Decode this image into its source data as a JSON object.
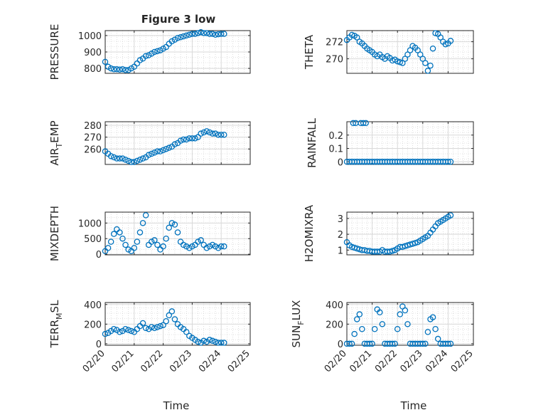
{
  "figure": {
    "title": "Figure 3 low"
  },
  "chart_data": [
    {
      "id": "pressure",
      "type": "scatter",
      "marker": "open-circle",
      "ylabel": "PRESSURE",
      "ylabel_sub": "",
      "ylabel_tail": "",
      "xlim": [
        0,
        5
      ],
      "ylim": [
        770,
        1030
      ],
      "yticks": [
        800,
        900,
        1000
      ],
      "ytick_labels": [
        "800",
        "900",
        "1000"
      ],
      "grid": true,
      "minor_grid": true,
      "x": [
        0,
        0.1,
        0.2,
        0.3,
        0.4,
        0.5,
        0.6,
        0.7,
        0.8,
        0.9,
        1.0,
        1.1,
        1.2,
        1.3,
        1.4,
        1.5,
        1.6,
        1.7,
        1.8,
        1.9,
        2.0,
        2.1,
        2.2,
        2.3,
        2.4,
        2.5,
        2.6,
        2.7,
        2.8,
        2.9,
        3.0,
        3.1,
        3.2,
        3.3,
        3.4,
        3.5,
        3.6,
        3.7,
        3.8,
        3.9,
        4.0,
        4.1
      ],
      "y": [
        840,
        810,
        800,
        795,
        795,
        793,
        795,
        790,
        790,
        800,
        810,
        830,
        850,
        860,
        875,
        880,
        890,
        900,
        905,
        910,
        920,
        930,
        950,
        965,
        975,
        985,
        990,
        995,
        1000,
        1005,
        1010,
        1010,
        1015,
        1020,
        1015,
        1015,
        1010,
        1010,
        1005,
        1008,
        1010,
        1010
      ]
    },
    {
      "id": "theta",
      "type": "scatter",
      "marker": "open-circle",
      "ylabel": "THETA",
      "ylabel_sub": "",
      "ylabel_tail": "",
      "xlim": [
        0,
        5
      ],
      "ylim": [
        268.3,
        273.3
      ],
      "yticks": [
        270,
        272
      ],
      "ytick_labels": [
        "270",
        "272"
      ],
      "grid": true,
      "minor_grid": true,
      "x": [
        0,
        0.1,
        0.2,
        0.3,
        0.4,
        0.5,
        0.6,
        0.7,
        0.8,
        0.9,
        1.0,
        1.1,
        1.2,
        1.3,
        1.4,
        1.5,
        1.6,
        1.7,
        1.8,
        1.9,
        2.0,
        2.1,
        2.2,
        2.3,
        2.4,
        2.5,
        2.6,
        2.7,
        2.8,
        2.9,
        3.0,
        3.1,
        3.2,
        3.3,
        3.4,
        3.5,
        3.6,
        3.7,
        3.8,
        3.9,
        4.0,
        4.1
      ],
      "y": [
        272.2,
        272.5,
        272.8,
        272.7,
        272.5,
        272.0,
        271.8,
        271.5,
        271.2,
        271.0,
        270.8,
        270.5,
        270.3,
        270.5,
        270.2,
        270.0,
        270.3,
        270.1,
        269.8,
        269.9,
        269.7,
        269.6,
        269.5,
        270.0,
        270.5,
        271.0,
        271.5,
        271.3,
        271.0,
        270.5,
        270.0,
        269.5,
        268.6,
        269.2,
        271.2,
        273.0,
        272.9,
        272.5,
        272.0,
        271.7,
        271.8,
        272.1
      ]
    },
    {
      "id": "air_temp",
      "type": "scatter",
      "marker": "open-circle",
      "ylabel": "AIR",
      "ylabel_sub": "T",
      "ylabel_tail": "EMP",
      "xlim": [
        0,
        5
      ],
      "ylim": [
        247,
        283
      ],
      "yticks": [
        260,
        270,
        280
      ],
      "ytick_labels": [
        "260",
        "270",
        "280"
      ],
      "grid": true,
      "minor_grid": true,
      "x": [
        0,
        0.1,
        0.2,
        0.3,
        0.4,
        0.5,
        0.6,
        0.7,
        0.8,
        0.9,
        1.0,
        1.1,
        1.2,
        1.3,
        1.4,
        1.5,
        1.6,
        1.7,
        1.8,
        1.9,
        2.0,
        2.1,
        2.2,
        2.3,
        2.4,
        2.5,
        2.6,
        2.7,
        2.8,
        2.9,
        3.0,
        3.1,
        3.2,
        3.3,
        3.4,
        3.5,
        3.6,
        3.7,
        3.8,
        3.9,
        4.0,
        4.1
      ],
      "y": [
        258,
        256,
        254,
        253,
        252,
        252,
        252,
        251,
        250,
        249,
        249,
        250,
        251,
        252,
        253,
        255,
        256,
        257,
        258,
        258,
        259,
        260,
        261,
        262,
        264,
        265,
        267,
        268,
        268,
        269,
        269,
        269,
        270,
        273,
        274,
        275,
        274,
        273,
        273,
        272,
        272,
        272
      ]
    },
    {
      "id": "rainfall",
      "type": "scatter",
      "marker": "open-circle",
      "ylabel": "RAINFALL",
      "ylabel_sub": "",
      "ylabel_tail": "",
      "xlim": [
        0,
        5
      ],
      "ylim": [
        -0.02,
        0.3
      ],
      "yticks": [
        0,
        0.1,
        0.2
      ],
      "ytick_labels": [
        "0",
        "0.1",
        "0.2"
      ],
      "grid": true,
      "minor_grid": true,
      "x": [
        0,
        0.1,
        0.2,
        0.3,
        0.4,
        0.5,
        0.6,
        0.7,
        0.8,
        0.9,
        1.0,
        1.1,
        1.2,
        1.3,
        1.4,
        1.5,
        1.6,
        1.7,
        1.8,
        1.9,
        2.0,
        2.1,
        2.2,
        2.3,
        2.4,
        2.5,
        2.6,
        2.7,
        2.8,
        2.9,
        3.0,
        3.1,
        3.2,
        3.3,
        3.4,
        3.5,
        3.6,
        3.7,
        3.8,
        3.9,
        4.0,
        4.1,
        0.25,
        0.35,
        0.55,
        0.65,
        0.75
      ],
      "y": [
        0,
        0,
        0,
        0,
        0,
        0,
        0,
        0,
        0,
        0,
        0,
        0,
        0,
        0,
        0,
        0,
        0,
        0,
        0,
        0,
        0,
        0,
        0,
        0,
        0,
        0,
        0,
        0,
        0,
        0,
        0,
        0,
        0,
        0,
        0,
        0,
        0,
        0,
        0,
        0,
        0,
        0,
        0.29,
        0.29,
        0.29,
        0.29,
        0.29
      ]
    },
    {
      "id": "mixdepth",
      "type": "scatter",
      "marker": "open-circle",
      "ylabel": "MIXDEPTH",
      "ylabel_sub": "",
      "ylabel_tail": "",
      "xlim": [
        0,
        5
      ],
      "ylim": [
        -20,
        1350
      ],
      "yticks": [
        0,
        500,
        1000
      ],
      "ytick_labels": [
        "0",
        "500",
        "1000"
      ],
      "grid": true,
      "minor_grid": true,
      "x": [
        0,
        0.1,
        0.2,
        0.3,
        0.4,
        0.5,
        0.6,
        0.7,
        0.8,
        0.9,
        1.0,
        1.1,
        1.2,
        1.3,
        1.4,
        1.5,
        1.6,
        1.7,
        1.8,
        1.9,
        2.0,
        2.1,
        2.2,
        2.3,
        2.4,
        2.5,
        2.6,
        2.7,
        2.8,
        2.9,
        3.0,
        3.1,
        3.2,
        3.3,
        3.4,
        3.5,
        3.6,
        3.7,
        3.8,
        3.9,
        4.0,
        4.1
      ],
      "y": [
        100,
        200,
        400,
        650,
        800,
        700,
        500,
        300,
        150,
        100,
        200,
        400,
        700,
        1000,
        1250,
        300,
        400,
        450,
        300,
        150,
        250,
        500,
        850,
        1000,
        950,
        700,
        400,
        300,
        250,
        200,
        250,
        300,
        400,
        450,
        300,
        200,
        250,
        300,
        250,
        200,
        250,
        250
      ]
    },
    {
      "id": "h2omixra",
      "type": "scatter",
      "marker": "open-circle",
      "ylabel": "H2OMIXRA",
      "ylabel_sub": "",
      "ylabel_tail": "",
      "xlim": [
        0,
        5
      ],
      "ylim": [
        0.7,
        3.4
      ],
      "yticks": [
        1,
        2,
        3
      ],
      "ytick_labels": [
        "1",
        "2",
        "3"
      ],
      "grid": true,
      "minor_grid": true,
      "x": [
        0,
        0.1,
        0.2,
        0.3,
        0.4,
        0.5,
        0.6,
        0.7,
        0.8,
        0.9,
        1.0,
        1.1,
        1.2,
        1.3,
        1.4,
        1.5,
        1.6,
        1.7,
        1.8,
        1.9,
        2.0,
        2.1,
        2.2,
        2.3,
        2.4,
        2.5,
        2.6,
        2.7,
        2.8,
        2.9,
        3.0,
        3.1,
        3.2,
        3.3,
        3.4,
        3.5,
        3.6,
        3.7,
        3.8,
        3.9,
        4.0,
        4.1
      ],
      "y": [
        1.5,
        1.3,
        1.2,
        1.15,
        1.1,
        1.05,
        1.0,
        1.0,
        0.95,
        0.95,
        0.9,
        0.9,
        0.9,
        0.9,
        1.0,
        0.9,
        0.9,
        0.9,
        0.95,
        1.0,
        1.1,
        1.2,
        1.2,
        1.25,
        1.3,
        1.35,
        1.4,
        1.45,
        1.5,
        1.6,
        1.7,
        1.8,
        1.9,
        2.1,
        2.3,
        2.5,
        2.7,
        2.8,
        2.9,
        3.0,
        3.1,
        3.2
      ]
    },
    {
      "id": "terr_msl",
      "type": "scatter",
      "marker": "open-circle",
      "ylabel": "TERR",
      "ylabel_sub": "M",
      "ylabel_tail": "SL",
      "xlim": [
        0,
        5
      ],
      "ylim": [
        -15,
        420
      ],
      "yticks": [
        0,
        200,
        400
      ],
      "ytick_labels": [
        "0",
        "200",
        "400"
      ],
      "grid": true,
      "minor_grid": true,
      "x_tick_values": [
        0,
        1,
        2,
        3,
        4,
        5
      ],
      "x_tick_labels": [
        "02/20",
        "02/21",
        "02/22",
        "02/23",
        "02/24",
        "02/25"
      ],
      "xlabel": "Time",
      "x": [
        0,
        0.1,
        0.2,
        0.3,
        0.4,
        0.5,
        0.6,
        0.7,
        0.8,
        0.9,
        1.0,
        1.1,
        1.2,
        1.3,
        1.4,
        1.5,
        1.6,
        1.7,
        1.8,
        1.9,
        2.0,
        2.1,
        2.2,
        2.3,
        2.4,
        2.5,
        2.6,
        2.7,
        2.8,
        2.9,
        3.0,
        3.1,
        3.2,
        3.3,
        3.4,
        3.5,
        3.6,
        3.7,
        3.8,
        3.9,
        4.0,
        4.1
      ],
      "y": [
        100,
        110,
        130,
        150,
        140,
        120,
        130,
        150,
        140,
        130,
        120,
        150,
        180,
        210,
        160,
        150,
        170,
        160,
        170,
        180,
        190,
        230,
        290,
        330,
        250,
        200,
        170,
        150,
        120,
        80,
        60,
        40,
        20,
        10,
        30,
        20,
        40,
        30,
        20,
        10,
        10,
        10
      ]
    },
    {
      "id": "sun_flux",
      "type": "scatter",
      "marker": "open-circle",
      "ylabel": "SUN",
      "ylabel_sub": "F",
      "ylabel_tail": "LUX",
      "xlim": [
        0,
        5
      ],
      "ylim": [
        -15,
        420
      ],
      "yticks": [
        0,
        200,
        400
      ],
      "ytick_labels": [
        "0",
        "200",
        "400"
      ],
      "grid": true,
      "minor_grid": true,
      "x_tick_values": [
        0,
        1,
        2,
        3,
        4,
        5
      ],
      "x_tick_labels": [
        "02/20",
        "02/21",
        "02/22",
        "02/23",
        "02/24",
        "02/25"
      ],
      "xlabel": "Time",
      "x": [
        0,
        0.1,
        0.2,
        0.3,
        0.4,
        0.5,
        0.6,
        0.7,
        0.8,
        0.9,
        1.0,
        1.1,
        1.2,
        1.3,
        1.4,
        1.5,
        1.6,
        1.7,
        1.8,
        1.9,
        2.0,
        2.1,
        2.2,
        2.3,
        2.4,
        2.5,
        2.6,
        2.7,
        2.8,
        2.9,
        3.0,
        3.1,
        3.2,
        3.3,
        3.4,
        3.5,
        3.6,
        3.7,
        3.8,
        3.9,
        4.0,
        4.1
      ],
      "y": [
        0,
        0,
        0,
        100,
        250,
        300,
        150,
        0,
        0,
        0,
        0,
        150,
        350,
        320,
        200,
        0,
        0,
        0,
        0,
        0,
        150,
        300,
        380,
        340,
        200,
        0,
        0,
        0,
        0,
        0,
        0,
        0,
        120,
        250,
        270,
        150,
        50,
        0,
        0,
        0,
        0,
        0
      ]
    }
  ]
}
